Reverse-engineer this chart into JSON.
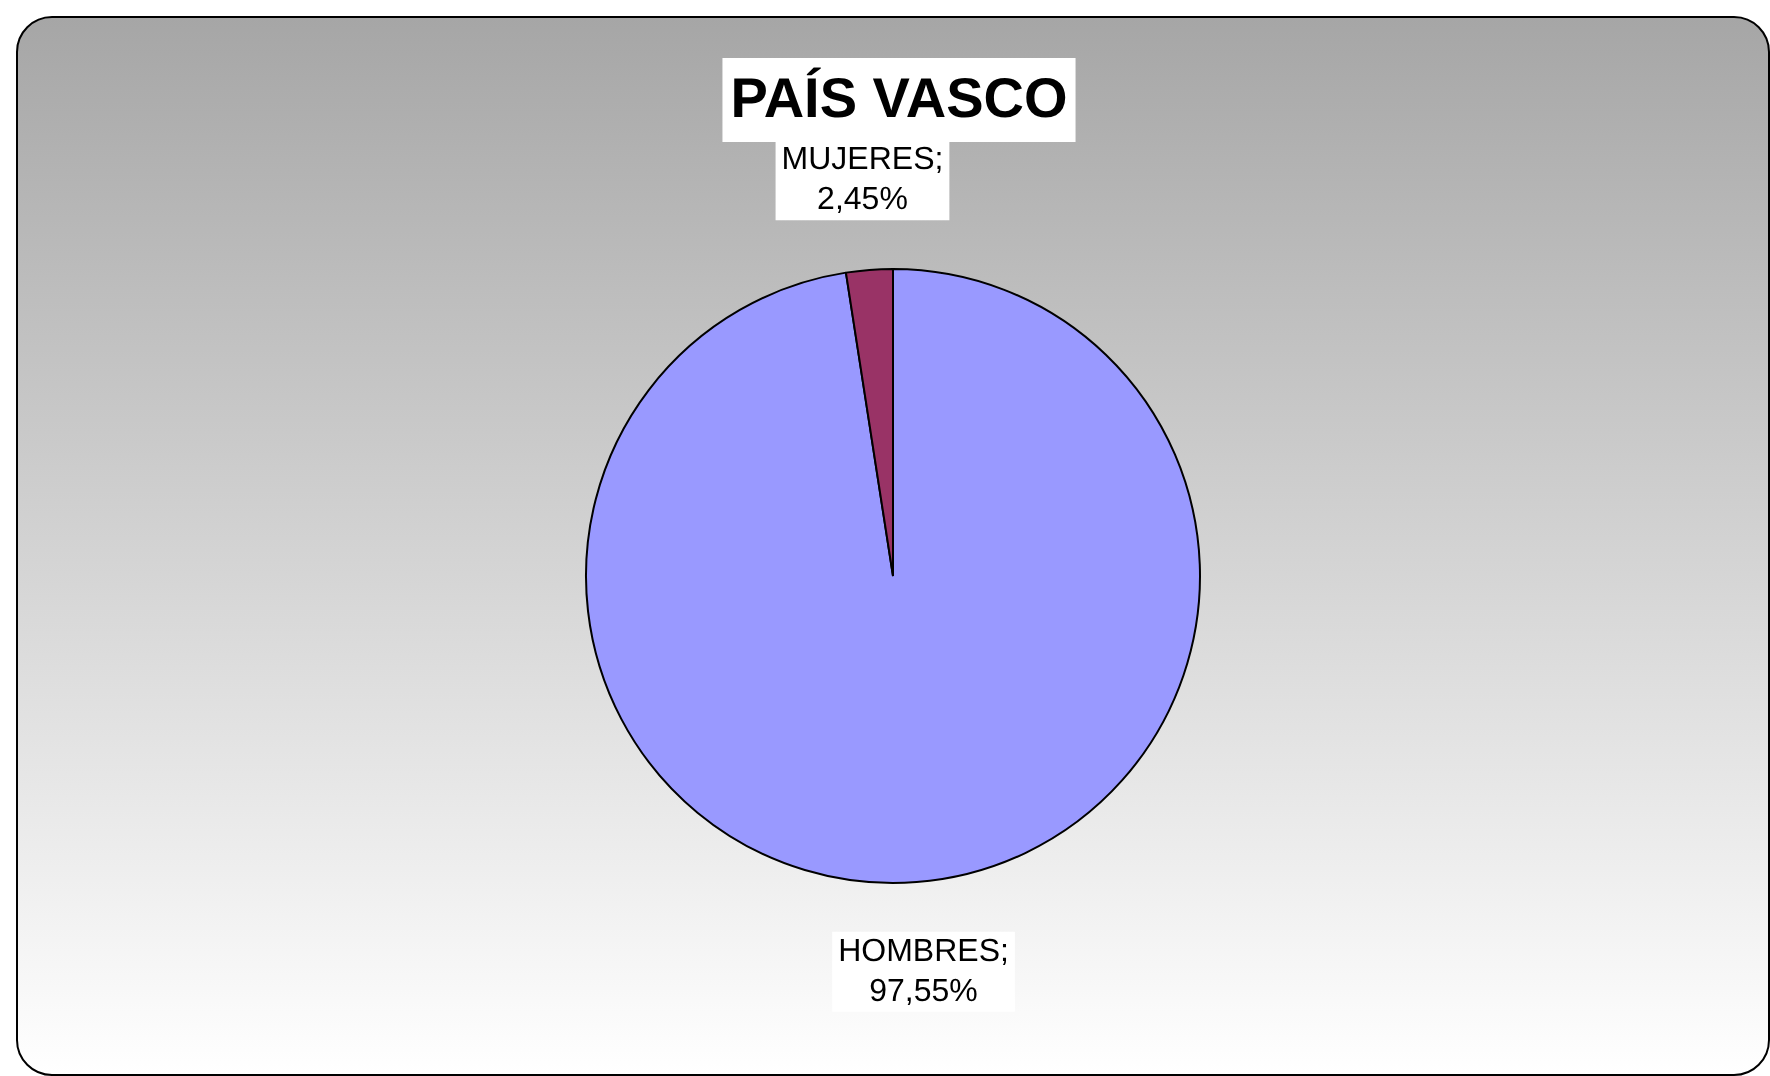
{
  "chart_data": {
    "type": "pie",
    "title": "PAÍS VASCO",
    "categories": [
      "HOMBRES",
      "MUJERES"
    ],
    "values": [
      97.55,
      2.45
    ],
    "colors": [
      "#9999ff",
      "#993366"
    ],
    "value_labels": [
      ";\n97,55%",
      ";\n2,45%"
    ],
    "legend": false
  }
}
